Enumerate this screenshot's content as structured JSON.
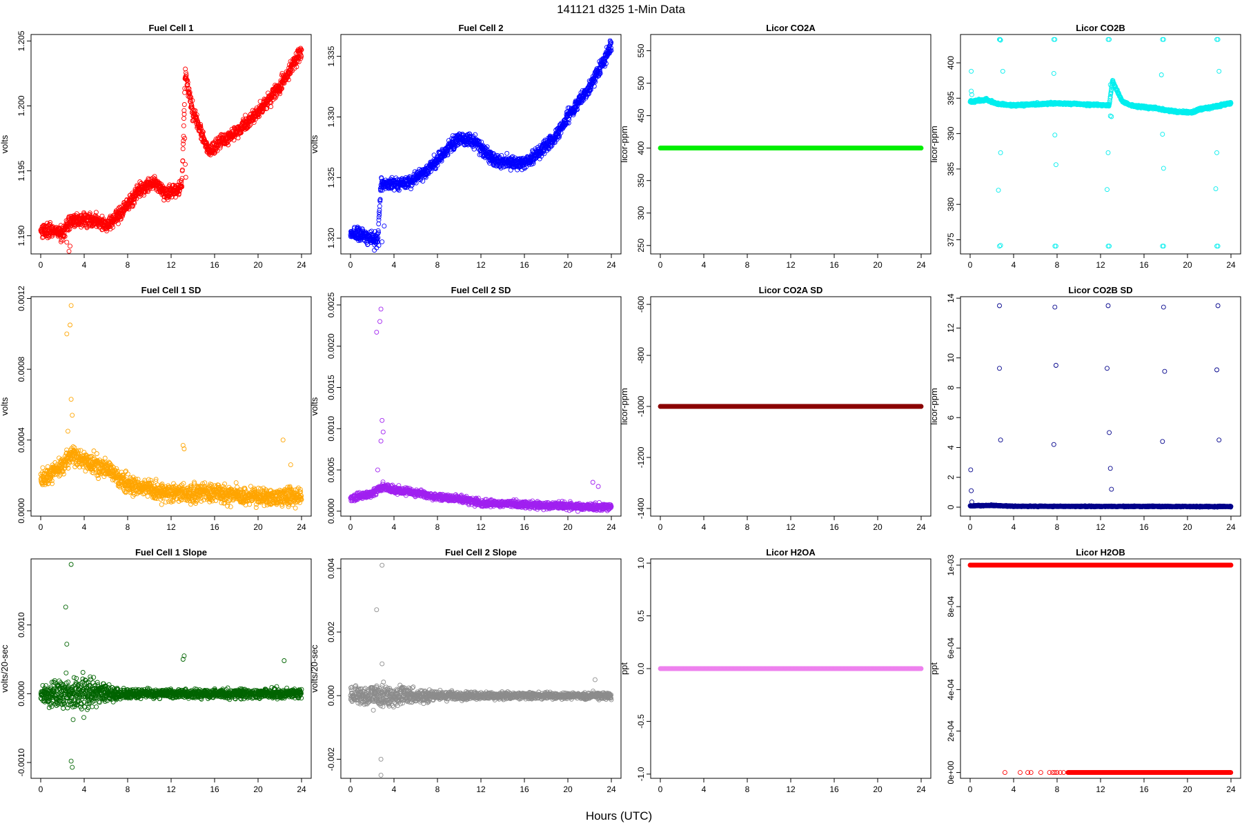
{
  "page": {
    "title": "141121    d325    1-Min Data",
    "xlabel": "Hours (UTC)"
  },
  "chart_data": [
    {
      "type": "scatter",
      "title": "Fuel Cell 1",
      "xlabel": "",
      "ylabel": "volts",
      "xlim": [
        0,
        24
      ],
      "ylim": [
        1.1886,
        1.2055
      ],
      "xticks": [
        "0",
        "4",
        "8",
        "12",
        "16",
        "20",
        "24"
      ],
      "yticks": [
        "1.190",
        "1.195",
        "1.200",
        "1.205"
      ],
      "ytick_values": [
        1.19,
        1.195,
        1.2,
        1.205
      ],
      "color": "#ff0000",
      "noise": 0.0005,
      "trend": [
        [
          0,
          1.1905
        ],
        [
          2,
          1.1902
        ],
        [
          2.8,
          1.1912
        ],
        [
          5,
          1.1912
        ],
        [
          6,
          1.1908
        ],
        [
          7.5,
          1.1918
        ],
        [
          9,
          1.1935
        ],
        [
          10.5,
          1.1942
        ],
        [
          11.5,
          1.1932
        ],
        [
          12.5,
          1.1935
        ],
        [
          13,
          1.194
        ],
        [
          13.3,
          1.2025
        ],
        [
          14,
          1.1995
        ],
        [
          15.5,
          1.1965
        ],
        [
          16.5,
          1.1972
        ],
        [
          18,
          1.198
        ],
        [
          20,
          1.1995
        ],
        [
          21,
          1.2005
        ],
        [
          22,
          1.2015
        ],
        [
          24,
          1.2042
        ]
      ],
      "outliers": [
        [
          13.25,
          1.1975
        ],
        [
          13.3,
          1.1955
        ],
        [
          13.35,
          1.1945
        ],
        [
          2.4,
          1.1895
        ],
        [
          2.6,
          1.1888
        ],
        [
          2.7,
          1.1892
        ]
      ]
    },
    {
      "type": "scatter",
      "title": "Fuel Cell 2",
      "xlabel": "",
      "ylabel": "volts",
      "xlim": [
        0,
        24
      ],
      "ylim": [
        1.3187,
        1.3368
      ],
      "xticks": [
        "0",
        "4",
        "8",
        "12",
        "16",
        "20",
        "24"
      ],
      "yticks": [
        "1.320",
        "1.325",
        "1.330",
        "1.335"
      ],
      "ytick_values": [
        1.32,
        1.325,
        1.33,
        1.335
      ],
      "color": "#0000ff",
      "noise": 0.0005,
      "trend": [
        [
          0,
          1.3205
        ],
        [
          2,
          1.32
        ],
        [
          2.5,
          1.3198
        ],
        [
          2.8,
          1.3245
        ],
        [
          5,
          1.3245
        ],
        [
          7,
          1.3255
        ],
        [
          9,
          1.3275
        ],
        [
          10,
          1.3282
        ],
        [
          11.5,
          1.328
        ],
        [
          13,
          1.3265
        ],
        [
          15,
          1.3262
        ],
        [
          16,
          1.3262
        ],
        [
          17,
          1.3268
        ],
        [
          19,
          1.3285
        ],
        [
          20,
          1.33
        ],
        [
          22,
          1.3325
        ],
        [
          23,
          1.334
        ],
        [
          24,
          1.336
        ]
      ],
      "outliers": [
        [
          2.2,
          1.319
        ],
        [
          2.4,
          1.3192
        ],
        [
          2.6,
          1.3194
        ],
        [
          2.9,
          1.3197
        ],
        [
          3.1,
          1.321
        ]
      ]
    },
    {
      "type": "scatter",
      "title": "Licor CO2A",
      "xlabel": "",
      "ylabel": "licor-ppm",
      "xlim": [
        0,
        24
      ],
      "ylim": [
        237,
        575
      ],
      "xticks": [
        "0",
        "4",
        "8",
        "12",
        "16",
        "20",
        "24"
      ],
      "yticks": [
        "250",
        "300",
        "350",
        "400",
        "450",
        "500",
        "550"
      ],
      "ytick_values": [
        250,
        300,
        350,
        400,
        450,
        500,
        550
      ],
      "color": "#00ee00",
      "noise": 0,
      "trend": [
        [
          0,
          400
        ],
        [
          24,
          400
        ]
      ],
      "outliers": []
    },
    {
      "type": "scatter",
      "title": "Licor CO2B",
      "xlabel": "",
      "ylabel": "licor-ppm",
      "xlim": [
        0,
        24
      ],
      "ylim": [
        373,
        404
      ],
      "xticks": [
        "0",
        "4",
        "8",
        "12",
        "16",
        "20",
        "24"
      ],
      "yticks": [
        "375",
        "380",
        "385",
        "390",
        "395",
        "400"
      ],
      "ytick_values": [
        375,
        380,
        385,
        390,
        395,
        400
      ],
      "color": "#00eeee",
      "noise": 0.15,
      "trend": [
        [
          0,
          394.5
        ],
        [
          1.5,
          394.8
        ],
        [
          2.5,
          394.2
        ],
        [
          4,
          394.0
        ],
        [
          8,
          394.3
        ],
        [
          11,
          394.1
        ],
        [
          12.8,
          394.0
        ],
        [
          13.1,
          397.5
        ],
        [
          14,
          394.5
        ],
        [
          15,
          393.9
        ],
        [
          17,
          393.6
        ],
        [
          18,
          393.3
        ],
        [
          19,
          393.1
        ],
        [
          20.5,
          393.0
        ],
        [
          21,
          393.4
        ],
        [
          22.5,
          393.8
        ],
        [
          24,
          394.3
        ]
      ],
      "outliers": [
        [
          0.1,
          398.8
        ],
        [
          0.1,
          396
        ],
        [
          0.15,
          395.5
        ],
        [
          2.7,
          403.3
        ],
        [
          2.75,
          403.3
        ],
        [
          2.8,
          403.2
        ],
        [
          3.0,
          398.8
        ],
        [
          2.8,
          387.3
        ],
        [
          2.6,
          382.0
        ],
        [
          2.7,
          374.1
        ],
        [
          2.8,
          374.2
        ],
        [
          7.7,
          403.3
        ],
        [
          7.8,
          403.3
        ],
        [
          7.7,
          398.5
        ],
        [
          7.8,
          389.8
        ],
        [
          7.9,
          385.6
        ],
        [
          7.8,
          374.1
        ],
        [
          7.9,
          374.1
        ],
        [
          12.7,
          403.3
        ],
        [
          12.8,
          403.3
        ],
        [
          12.9,
          396.9
        ],
        [
          12.7,
          387.3
        ],
        [
          12.6,
          382.1
        ],
        [
          12.7,
          374.1
        ],
        [
          12.8,
          374.1
        ],
        [
          12.9,
          392.5
        ],
        [
          13.0,
          392.4
        ],
        [
          17.7,
          403.3
        ],
        [
          17.8,
          403.3
        ],
        [
          17.6,
          398.3
        ],
        [
          17.7,
          389.9
        ],
        [
          17.8,
          385.1
        ],
        [
          17.7,
          374.1
        ],
        [
          17.8,
          374.1
        ],
        [
          22.7,
          403.3
        ],
        [
          22.8,
          403.3
        ],
        [
          22.9,
          398.8
        ],
        [
          22.7,
          387.3
        ],
        [
          22.6,
          382.2
        ],
        [
          22.7,
          374.1
        ],
        [
          22.8,
          374.1
        ]
      ]
    },
    {
      "type": "scatter",
      "title": "Fuel Cell 1 SD",
      "xlabel": "",
      "ylabel": "volts",
      "xlim": [
        0,
        24
      ],
      "ylim": [
        -3e-05,
        0.00121
      ],
      "xticks": [
        "0",
        "4",
        "8",
        "12",
        "16",
        "20",
        "24"
      ],
      "yticks": [
        "0.0000",
        "0.0004",
        "0.0008",
        "0.0012"
      ],
      "ytick_values": [
        0,
        0.0004,
        0.0008,
        0.0012
      ],
      "color": "#ffa500",
      "noise": 5e-05,
      "trend": [
        [
          0,
          0.00018
        ],
        [
          2,
          0.00026
        ],
        [
          3,
          0.00032
        ],
        [
          4,
          0.00028
        ],
        [
          6,
          0.00024
        ],
        [
          8,
          0.00015
        ],
        [
          10,
          0.00012
        ],
        [
          12,
          0.0001
        ],
        [
          16,
          0.0001
        ],
        [
          20,
          8e-05
        ],
        [
          24,
          8e-05
        ]
      ],
      "outliers": [
        [
          2.8,
          0.00116
        ],
        [
          2.7,
          0.00105
        ],
        [
          2.4,
          0.001
        ],
        [
          2.8,
          0.00063
        ],
        [
          2.9,
          0.00054
        ],
        [
          13.1,
          0.00037
        ],
        [
          13.2,
          0.00035
        ],
        [
          22.3,
          0.0004
        ],
        [
          23.0,
          0.00026
        ],
        [
          2.5,
          0.00045
        ]
      ]
    },
    {
      "type": "scatter",
      "title": "Fuel Cell 2 SD",
      "xlabel": "",
      "ylabel": "volts",
      "xlim": [
        0,
        24
      ],
      "ylim": [
        -6e-05,
        0.0026
      ],
      "xticks": [
        "0",
        "4",
        "8",
        "12",
        "16",
        "20",
        "24"
      ],
      "yticks": [
        "0.0000",
        "0.0005",
        "0.0010",
        "0.0015",
        "0.0020",
        "0.0025"
      ],
      "ytick_values": [
        0,
        0.0005,
        0.001,
        0.0015,
        0.002,
        0.0025
      ],
      "color": "#a020f0",
      "noise": 4e-05,
      "trend": [
        [
          0,
          0.00015
        ],
        [
          2,
          0.00022
        ],
        [
          3,
          0.0003
        ],
        [
          4,
          0.00026
        ],
        [
          6,
          0.00022
        ],
        [
          8,
          0.00017
        ],
        [
          10,
          0.00015
        ],
        [
          12,
          0.0001
        ],
        [
          16,
          8e-05
        ],
        [
          20,
          6e-05
        ],
        [
          24,
          5e-05
        ]
      ],
      "outliers": [
        [
          2.8,
          0.00245
        ],
        [
          2.7,
          0.0023
        ],
        [
          2.4,
          0.00217
        ],
        [
          2.9,
          0.0011
        ],
        [
          3.0,
          0.00096
        ],
        [
          2.8,
          0.00085
        ],
        [
          2.5,
          0.0005
        ],
        [
          22.8,
          0.0003
        ],
        [
          22.3,
          0.00035
        ]
      ]
    },
    {
      "type": "scatter",
      "title": "Licor CO2A SD",
      "xlabel": "",
      "ylabel": "licor-ppm",
      "xlim": [
        0,
        24
      ],
      "ylim": [
        -1430,
        -570
      ],
      "xticks": [
        "0",
        "4",
        "8",
        "12",
        "16",
        "20",
        "24"
      ],
      "yticks": [
        "-1400",
        "-1200",
        "-1000",
        "-800",
        "-600"
      ],
      "ytick_values": [
        -1400,
        -1200,
        -1000,
        -800,
        -600
      ],
      "color": "#8b0000",
      "noise": 0,
      "trend": [
        [
          0,
          -1000
        ],
        [
          24,
          -1000
        ]
      ],
      "outliers": []
    },
    {
      "type": "scatter",
      "title": "Licor CO2B SD",
      "xlabel": "",
      "ylabel": "licor-ppm",
      "xlim": [
        0,
        24
      ],
      "ylim": [
        -0.6,
        14.1
      ],
      "xticks": [
        "0",
        "4",
        "8",
        "12",
        "16",
        "20",
        "24"
      ],
      "yticks": [
        "0",
        "2",
        "4",
        "6",
        "8",
        "10",
        "12",
        "14"
      ],
      "ytick_values": [
        0,
        2,
        4,
        6,
        8,
        10,
        12,
        14
      ],
      "color": "#00008b",
      "noise": 0.03,
      "trend": [
        [
          0,
          0.08
        ],
        [
          2,
          0.12
        ],
        [
          4,
          0.06
        ],
        [
          24,
          0.04
        ]
      ],
      "outliers": [
        [
          0.05,
          2.5
        ],
        [
          0.1,
          1.1
        ],
        [
          0.15,
          0.35
        ],
        [
          2.7,
          13.5
        ],
        [
          2.7,
          9.3
        ],
        [
          2.8,
          4.5
        ],
        [
          7.8,
          13.4
        ],
        [
          7.9,
          9.5
        ],
        [
          7.7,
          4.2
        ],
        [
          12.7,
          13.5
        ],
        [
          12.6,
          9.3
        ],
        [
          12.8,
          5.0
        ],
        [
          12.9,
          2.6
        ],
        [
          13.0,
          1.2
        ],
        [
          17.8,
          13.4
        ],
        [
          17.9,
          9.1
        ],
        [
          17.7,
          4.4
        ],
        [
          22.8,
          13.5
        ],
        [
          22.7,
          9.2
        ],
        [
          22.9,
          4.5
        ]
      ]
    },
    {
      "type": "scatter",
      "title": "Fuel Cell 1 Slope",
      "xlabel": "",
      "ylabel": "volts/20-sec",
      "xlim": [
        0,
        24
      ],
      "ylim": [
        -0.00123,
        0.00196
      ],
      "xticks": [
        "0",
        "4",
        "8",
        "12",
        "16",
        "20",
        "24"
      ],
      "yticks": [
        "-0.0010",
        "0.0000",
        "0.0010"
      ],
      "ytick_values": [
        -0.001,
        0,
        0.001
      ],
      "color": "#006400",
      "noise": 0.00012,
      "trend": [
        [
          0,
          0
        ],
        [
          24,
          0
        ]
      ],
      "envelope": [
        [
          0,
          0.9
        ],
        [
          1,
          1.4
        ],
        [
          2,
          1.8
        ],
        [
          3,
          2.2
        ],
        [
          4,
          2.0
        ],
        [
          5,
          1.5
        ],
        [
          6,
          1.0
        ],
        [
          7,
          0.8
        ],
        [
          8,
          0.5
        ],
        [
          12,
          0.45
        ],
        [
          16,
          0.55
        ],
        [
          20,
          0.5
        ],
        [
          24,
          0.6
        ]
      ],
      "outliers": [
        [
          2.8,
          0.00188
        ],
        [
          2.3,
          0.00126
        ],
        [
          2.8,
          -0.00098
        ],
        [
          2.9,
          -0.00107
        ],
        [
          13.2,
          0.00055
        ],
        [
          13.1,
          0.0005
        ],
        [
          22.4,
          0.00048
        ],
        [
          2.4,
          0.00072
        ]
      ]
    },
    {
      "type": "scatter",
      "title": "Fuel Cell 2 Slope",
      "xlabel": "",
      "ylabel": "volts/20-sec",
      "xlim": [
        0,
        24
      ],
      "ylim": [
        -0.0026,
        0.0043
      ],
      "xticks": [
        "0",
        "4",
        "8",
        "12",
        "16",
        "20",
        "24"
      ],
      "yticks": [
        "-0.002",
        "0.000",
        "0.002",
        "0.004"
      ],
      "ytick_values": [
        -0.002,
        0,
        0.002,
        0.004
      ],
      "color": "#8c8c8c",
      "noise": 0.00022,
      "trend": [
        [
          0,
          0
        ],
        [
          24,
          0
        ]
      ],
      "envelope": [
        [
          0,
          0.9
        ],
        [
          2,
          1.5
        ],
        [
          3,
          1.8
        ],
        [
          4,
          1.5
        ],
        [
          6,
          1.0
        ],
        [
          8,
          0.6
        ],
        [
          12,
          0.45
        ],
        [
          16,
          0.45
        ],
        [
          20,
          0.4
        ],
        [
          24,
          0.45
        ]
      ],
      "outliers": [
        [
          2.9,
          0.0041
        ],
        [
          2.4,
          0.0027
        ],
        [
          2.8,
          -0.002
        ],
        [
          2.8,
          -0.0025
        ],
        [
          2.9,
          0.001
        ],
        [
          22.5,
          0.0005
        ]
      ]
    },
    {
      "type": "scatter",
      "title": "Licor H2OA",
      "xlabel": "",
      "ylabel": "ppt",
      "xlim": [
        0,
        24
      ],
      "ylim": [
        -1.04,
        1.04
      ],
      "xticks": [
        "0",
        "4",
        "8",
        "12",
        "16",
        "20",
        "24"
      ],
      "yticks": [
        "-1.0",
        "-0.5",
        "0.0",
        "0.5",
        "1.0"
      ],
      "ytick_values": [
        -1,
        -0.5,
        0,
        0.5,
        1
      ],
      "color": "#ee82ee",
      "noise": 0,
      "trend": [
        [
          0,
          0
        ],
        [
          24,
          0
        ]
      ],
      "outliers": []
    },
    {
      "type": "scatter",
      "title": "Licor H2OB",
      "xlabel": "",
      "ylabel": "ppt",
      "xlim": [
        0,
        24
      ],
      "ylim": [
        -2.8e-05,
        0.00103
      ],
      "xticks": [
        "0",
        "4",
        "8",
        "12",
        "16",
        "20",
        "24"
      ],
      "yticks": [
        "0e+00",
        "2e-04",
        "4e-04",
        "6e-04",
        "8e-04",
        "1e-03"
      ],
      "ytick_values": [
        0,
        0.0002,
        0.0004,
        0.0006,
        0.0008,
        0.001
      ],
      "color": "#ff0000",
      "noise": 0,
      "trend": [
        [
          0,
          0.001
        ],
        [
          24,
          0.001
        ]
      ],
      "lower_band": {
        "value": 0,
        "x": [
          3.2,
          4.6,
          5.3,
          5.6,
          6.5,
          7.3,
          7.6,
          7.8,
          8.0,
          8.3,
          8.6
        ],
        "dense_from": 9.0,
        "dense_to": 24
      },
      "outliers": []
    }
  ]
}
